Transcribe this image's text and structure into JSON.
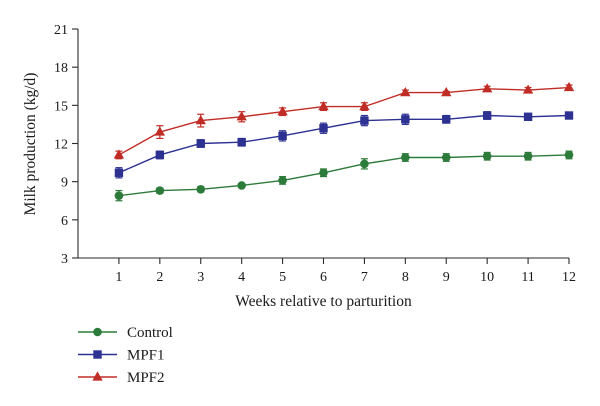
{
  "chart_data": {
    "type": "line",
    "xlabel": "Weeks relative to parturition",
    "ylabel": "Milk production (kg/d)",
    "xlim": [
      0,
      12
    ],
    "ylim": [
      3,
      21
    ],
    "xticks": [
      1,
      2,
      3,
      4,
      5,
      6,
      7,
      8,
      9,
      10,
      11,
      12
    ],
    "yticks": [
      3,
      6,
      9,
      12,
      15,
      18,
      21
    ],
    "grid": false,
    "legend_position": "bottom-left",
    "x": [
      1,
      2,
      3,
      4,
      5,
      6,
      7,
      8,
      9,
      10,
      11,
      12
    ],
    "series": [
      {
        "name": "Control",
        "marker": "circle",
        "color": "#2d7b3a",
        "values": [
          7.9,
          8.3,
          8.4,
          8.7,
          9.1,
          9.7,
          10.4,
          10.9,
          10.9,
          11.0,
          11.0,
          11.1
        ],
        "errors": [
          0.4,
          0.2,
          0.2,
          0.1,
          0.3,
          0.3,
          0.4,
          0.3,
          0.3,
          0.3,
          0.3,
          0.3
        ]
      },
      {
        "name": "MPF1",
        "marker": "square",
        "color": "#2d3192",
        "values": [
          9.7,
          11.1,
          12.0,
          12.1,
          12.6,
          13.2,
          13.8,
          13.9,
          13.9,
          14.2,
          14.1,
          14.2
        ],
        "errors": [
          0.4,
          0.3,
          0.3,
          0.3,
          0.4,
          0.4,
          0.4,
          0.4,
          0.3,
          0.3,
          0.2,
          0.1
        ]
      },
      {
        "name": "MPF2",
        "marker": "triangle",
        "color": "#c02d26",
        "values": [
          11.1,
          12.9,
          13.8,
          14.1,
          14.5,
          14.9,
          14.9,
          16.0,
          16.0,
          16.3,
          16.2,
          16.4
        ],
        "errors": [
          0.3,
          0.5,
          0.5,
          0.4,
          0.3,
          0.3,
          0.3,
          0.2,
          0.1,
          0.2,
          0.2,
          0.2
        ]
      }
    ]
  }
}
